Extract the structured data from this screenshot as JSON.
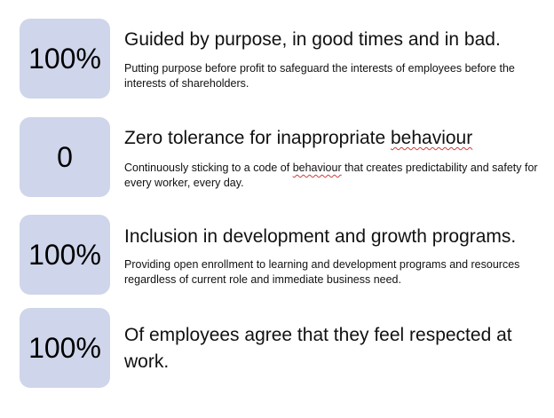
{
  "items": [
    {
      "stat": "100%",
      "heading": "Guided by purpose, in good times and in bad.",
      "desc": "Putting purpose before profit to safeguard the interests of employees before the interests of shareholders."
    },
    {
      "stat": "0",
      "heading_pre": "Zero tolerance for inappropriate ",
      "heading_flag": "behaviour",
      "desc_pre": "Continuously sticking to a code of ",
      "desc_flag": "behaviour",
      "desc_post": " that creates predictability and safety for every worker, every day."
    },
    {
      "stat": "100%",
      "heading": "Inclusion in development and growth programs.",
      "desc": "Providing open enrollment to learning and development programs and resources regardless of current role and immediate business need."
    },
    {
      "stat": "100%",
      "heading": "Of employees agree that they feel respected at work."
    }
  ]
}
